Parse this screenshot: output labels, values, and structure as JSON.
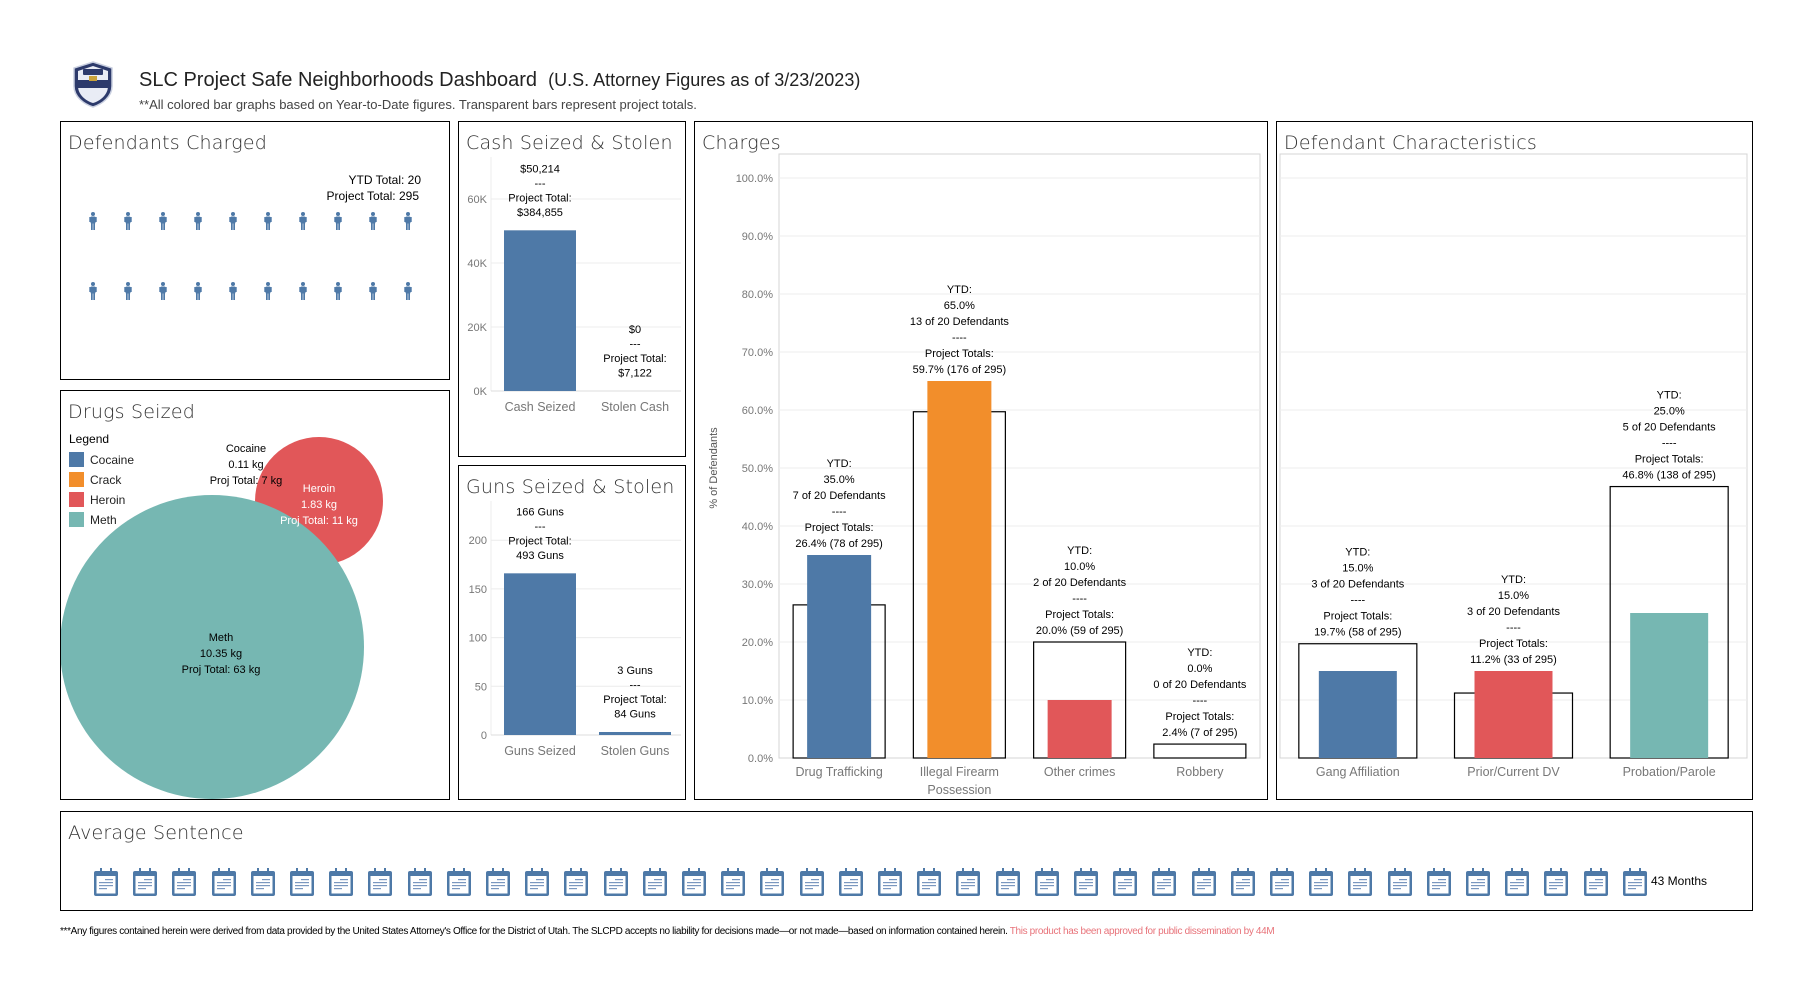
{
  "header": {
    "logo_icon": "police-badge-icon",
    "title": "SLC Project Safe Neighborhoods Dashboard",
    "title_suffix": "(U.S. Attorney Figures as of 3/23/2023)",
    "subtitle": "**All colored bar graphs based on Year-to-Date figures. Transparent bars represent project totals."
  },
  "colors": {
    "blue": "#4e79a7",
    "orange": "#f28e2b",
    "red": "#e15759",
    "teal": "#76b7b2",
    "footer_red": "#e8737a"
  },
  "defendants_charged": {
    "title": "Defendants Charged",
    "ytd_total": "YTD Total: 20",
    "project_total": "Project Total: 295",
    "icon": "person-icon",
    "count": 20
  },
  "drugs_seized": {
    "title": "Drugs Seized",
    "legend_title": "Legend",
    "legend": [
      {
        "label": "Cocaine",
        "color": "#4e79a7"
      },
      {
        "label": "Crack",
        "color": "#f28e2b"
      },
      {
        "label": "Heroin",
        "color": "#e15759"
      },
      {
        "label": "Meth",
        "color": "#76b7b2"
      }
    ]
  },
  "cash": {
    "title": "Cash Seized & Stolen"
  },
  "guns": {
    "title": "Guns Seized & Stolen"
  },
  "charges": {
    "title": "Charges"
  },
  "characteristics": {
    "title": "Defendant Characteristics"
  },
  "average_sentence": {
    "title": "Average Sentence",
    "icon": "calendar-icon",
    "months": 43,
    "icon_count": 40,
    "label": "43 Months"
  },
  "footer": {
    "disclaimer": "***Any figures contained herein were derived from data provided by the United States Attorney's Office for the District of Utah. The SLCPD accepts no liability for decisions made—or not made—based on information contained herein.",
    "approval": "This product has been approved for public dissemination by 44M"
  },
  "chart_data": [
    {
      "id": "drugs",
      "type": "bubble",
      "title": "Drugs Seized",
      "unit": "kg",
      "items": [
        {
          "name": "Cocaine",
          "ytd": 0.11,
          "project_total": 7,
          "label": [
            "Cocaine",
            "0.11 kg",
            "Proj Total: 7 kg"
          ],
          "color": "#4e79a7"
        },
        {
          "name": "Heroin",
          "ytd": 1.83,
          "project_total": 11,
          "label": [
            "Heroin",
            "1.83 kg",
            "Proj Total: 11 kg"
          ],
          "color": "#e15759"
        },
        {
          "name": "Meth",
          "ytd": 10.35,
          "project_total": 63,
          "label": [
            "Meth",
            "10.35 kg",
            "Proj Total: 63 kg"
          ],
          "color": "#76b7b2"
        }
      ]
    },
    {
      "id": "cash",
      "type": "bar",
      "title": "Cash Seized & Stolen",
      "categories": [
        "Cash Seized",
        "Stolen Cash"
      ],
      "values": [
        50214,
        0
      ],
      "labels": [
        [
          "$50,214",
          "---",
          "Project Total:",
          "$384,855"
        ],
        [
          "$0",
          "---",
          "Project Total:",
          "$7,122"
        ]
      ],
      "yticks": [
        "0K",
        "20K",
        "40K",
        "60K"
      ],
      "ylim": [
        0,
        70000
      ]
    },
    {
      "id": "guns",
      "type": "bar",
      "title": "Guns Seized & Stolen",
      "categories": [
        "Guns Seized",
        "Stolen Guns"
      ],
      "values": [
        166,
        3
      ],
      "labels": [
        [
          "166 Guns",
          "---",
          "Project Total:",
          "493 Guns"
        ],
        [
          "3 Guns",
          "---",
          "Project Total:",
          "84 Guns"
        ]
      ],
      "yticks": [
        "0",
        "50",
        "100",
        "150",
        "200"
      ],
      "ylim": [
        0,
        230
      ]
    },
    {
      "id": "charges",
      "type": "bar",
      "title": "Charges",
      "ylabel": "% of Defendants",
      "yticks": [
        "0.0%",
        "10.0%",
        "20.0%",
        "30.0%",
        "40.0%",
        "50.0%",
        "60.0%",
        "70.0%",
        "80.0%",
        "90.0%",
        "100.0%"
      ],
      "ylim": [
        0,
        100
      ],
      "categories": [
        [
          "Drug Trafficking"
        ],
        [
          "Illegal Firearm",
          "Possession"
        ],
        [
          "Other crimes"
        ],
        [
          "Robbery"
        ]
      ],
      "series": [
        {
          "name": "YTD",
          "values": [
            35.0,
            65.0,
            10.0,
            0.0
          ],
          "colors": [
            "#4e79a7",
            "#f28e2b",
            "#e15759",
            "#e15759"
          ]
        },
        {
          "name": "Project Total",
          "values": [
            26.4,
            59.7,
            20.0,
            2.4
          ]
        }
      ],
      "labels": [
        [
          "YTD:",
          "35.0%",
          "7 of 20 Defendants",
          "----",
          "Project Totals:",
          "26.4% (78 of 295)"
        ],
        [
          "YTD:",
          "65.0%",
          "13 of 20 Defendants",
          "----",
          "Project Totals:",
          "59.7% (176 of 295)"
        ],
        [
          "YTD:",
          "10.0%",
          "2 of 20 Defendants",
          "----",
          "Project Totals:",
          "20.0% (59 of 295)"
        ],
        [
          "YTD:",
          "0.0%",
          "0 of 20 Defendants",
          "----",
          "Project Totals:",
          "2.4% (7 of 295)"
        ]
      ]
    },
    {
      "id": "characteristics",
      "type": "bar",
      "title": "Defendant Characteristics",
      "ylim": [
        0,
        100
      ],
      "categories": [
        "Gang Affiliation",
        "Prior/Current DV",
        "Probation/Parole"
      ],
      "series": [
        {
          "name": "YTD",
          "values": [
            15.0,
            15.0,
            25.0
          ],
          "colors": [
            "#4e79a7",
            "#e15759",
            "#76b7b2"
          ]
        },
        {
          "name": "Project Total",
          "values": [
            19.7,
            11.2,
            46.8
          ]
        }
      ],
      "labels": [
        [
          "YTD:",
          "15.0%",
          "3 of 20 Defendants",
          "----",
          "Project Totals:",
          "19.7% (58 of 295)"
        ],
        [
          "YTD:",
          "15.0%",
          "3 of 20 Defendants",
          "----",
          "Project Totals:",
          "11.2% (33 of 295)"
        ],
        [
          "YTD:",
          "25.0%",
          "5 of 20 Defendants",
          "----",
          "Project Totals:",
          "46.8% (138 of 295)"
        ]
      ]
    }
  ]
}
